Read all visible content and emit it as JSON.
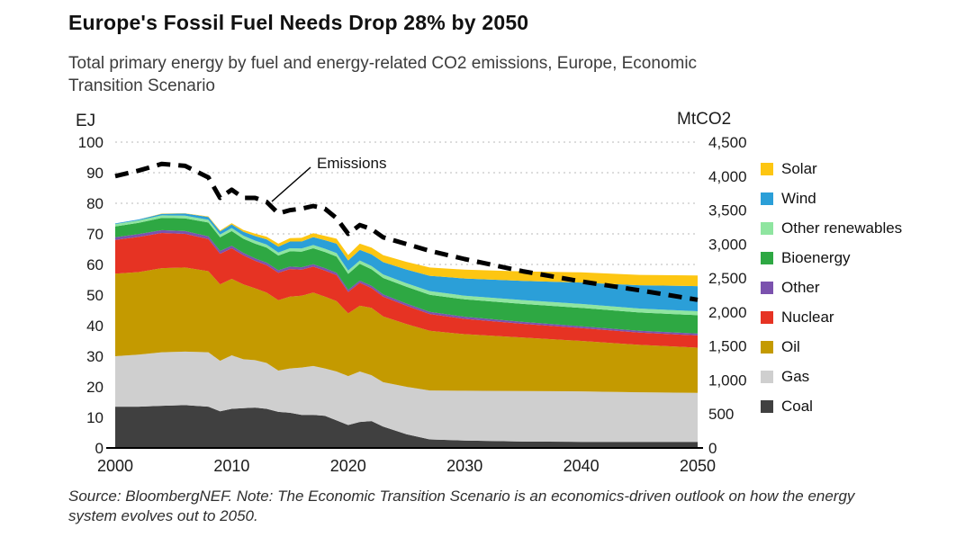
{
  "title": "Europe's Fossil Fuel Needs Drop 28% by 2050",
  "subtitle": "Total primary energy by fuel and energy-related CO2 emissions, Europe, Economic Transition Scenario",
  "footnote": "Source: BloombergNEF. Note: The Economic Transition Scenario is an economics-driven outlook on how the energy system evolves out to 2050.",
  "chart_data": {
    "type": "area",
    "stacked": true,
    "grid": "dotted-horizontal",
    "legend_position": "right",
    "x": [
      2000,
      2002,
      2004,
      2006,
      2008,
      2009,
      2010,
      2011,
      2012,
      2013,
      2014,
      2015,
      2016,
      2017,
      2018,
      2019,
      2020,
      2021,
      2022,
      2023,
      2025,
      2027,
      2030,
      2035,
      2040,
      2045,
      2050
    ],
    "x_ticks": [
      "2000",
      "2010",
      "2020",
      "2030",
      "2040",
      "2050"
    ],
    "left_axis": {
      "label": "EJ",
      "min": 0,
      "max": 100,
      "ticks": [
        0,
        10,
        20,
        30,
        40,
        50,
        60,
        70,
        80,
        90,
        100
      ]
    },
    "right_axis": {
      "label": "MtCO2",
      "min": 0,
      "max": 4500,
      "ticks": [
        "0",
        "500",
        "1,000",
        "1,500",
        "2,000",
        "2,500",
        "3,000",
        "3,500",
        "4,000",
        "4,500"
      ]
    },
    "series": [
      {
        "name": "Coal",
        "color": "#404040",
        "values": [
          13.5,
          13.5,
          13.8,
          14.0,
          13.5,
          12.0,
          12.8,
          13.0,
          13.2,
          12.8,
          11.8,
          11.5,
          10.8,
          10.8,
          10.5,
          9.0,
          7.5,
          8.5,
          8.8,
          7.0,
          4.5,
          2.8,
          2.4,
          2.1,
          2.0,
          2.0,
          2.0
        ]
      },
      {
        "name": "Gas",
        "color": "#CFCFCF",
        "values": [
          16.5,
          17.0,
          17.5,
          17.5,
          17.8,
          16.5,
          17.5,
          16.0,
          15.5,
          15.0,
          13.5,
          14.5,
          15.5,
          16.0,
          15.5,
          16.0,
          16.0,
          16.5,
          15.0,
          14.5,
          15.5,
          16.0,
          16.3,
          16.5,
          16.5,
          16.2,
          16.0
        ]
      },
      {
        "name": "Oil",
        "color": "#C49A00",
        "values": [
          27.0,
          27.0,
          27.5,
          27.5,
          26.5,
          25.0,
          25.0,
          24.5,
          23.5,
          23.0,
          23.0,
          23.5,
          23.5,
          24.0,
          23.5,
          23.0,
          20.5,
          21.5,
          22.0,
          21.5,
          20.5,
          19.5,
          18.5,
          17.5,
          16.5,
          15.5,
          14.8
        ]
      },
      {
        "name": "Nuclear",
        "color": "#E63323",
        "values": [
          11.0,
          11.5,
          11.5,
          11.0,
          10.5,
          10.0,
          10.0,
          9.5,
          9.0,
          9.0,
          9.0,
          9.0,
          8.5,
          8.5,
          8.5,
          8.5,
          7.0,
          7.5,
          6.5,
          6.5,
          6.0,
          5.5,
          5.0,
          4.5,
          4.2,
          4.0,
          4.0
        ]
      },
      {
        "name": "Other",
        "color": "#7B52AE",
        "values": [
          0.9,
          0.9,
          0.9,
          0.9,
          0.9,
          0.9,
          0.8,
          0.8,
          0.8,
          0.8,
          0.8,
          0.8,
          0.8,
          0.8,
          0.8,
          0.8,
          0.7,
          0.7,
          0.7,
          0.7,
          0.7,
          0.7,
          0.7,
          0.6,
          0.6,
          0.6,
          0.6
        ]
      },
      {
        "name": "Bioenergy",
        "color": "#2EA843",
        "values": [
          3.5,
          3.7,
          4.0,
          4.2,
          4.5,
          4.5,
          4.8,
          4.6,
          4.8,
          4.9,
          4.8,
          5.0,
          5.1,
          5.2,
          5.3,
          5.3,
          5.2,
          5.5,
          5.4,
          5.4,
          5.5,
          5.6,
          5.7,
          5.9,
          6.0,
          6.0,
          6.0
        ]
      },
      {
        "name": "Other renewables",
        "color": "#8FE5A0",
        "values": [
          0.8,
          0.8,
          0.85,
          0.85,
          0.9,
          0.9,
          1.0,
          1.0,
          1.0,
          1.0,
          1.0,
          1.0,
          1.0,
          1.05,
          1.05,
          1.1,
          1.1,
          1.1,
          1.1,
          1.15,
          1.15,
          1.2,
          1.2,
          1.25,
          1.3,
          1.3,
          1.3
        ]
      },
      {
        "name": "Wind",
        "color": "#2B9FD8",
        "values": [
          0.2,
          0.3,
          0.5,
          0.7,
          0.9,
          1.0,
          1.2,
          1.3,
          1.5,
          1.7,
          1.9,
          2.2,
          2.3,
          2.6,
          2.8,
          3.1,
          3.3,
          3.5,
          3.8,
          4.0,
          4.5,
          5.0,
          5.6,
          6.3,
          7.0,
          7.6,
          8.2
        ]
      },
      {
        "name": "Solar",
        "color": "#FDC612",
        "values": [
          0.0,
          0.0,
          0.1,
          0.1,
          0.2,
          0.3,
          0.4,
          0.6,
          0.8,
          0.9,
          1.0,
          1.1,
          1.2,
          1.3,
          1.4,
          1.6,
          1.8,
          2.0,
          2.2,
          2.3,
          2.5,
          2.7,
          2.9,
          3.1,
          3.3,
          3.4,
          3.5
        ]
      }
    ],
    "line": {
      "name": "Emissions",
      "axis": "right",
      "color": "#000000",
      "style": "dashed",
      "values": [
        4000,
        4080,
        4180,
        4150,
        3980,
        3680,
        3800,
        3680,
        3680,
        3620,
        3450,
        3500,
        3520,
        3560,
        3520,
        3380,
        3150,
        3280,
        3220,
        3100,
        3000,
        2900,
        2780,
        2600,
        2450,
        2320,
        2180
      ]
    }
  }
}
